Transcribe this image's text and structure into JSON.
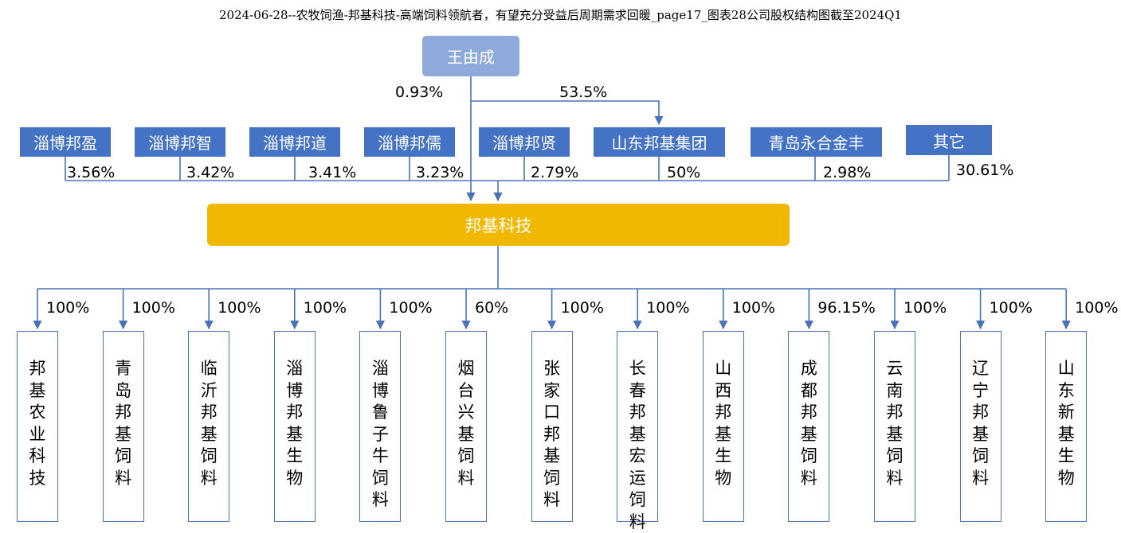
{
  "title": "2024-06-28--农牧饲渔-邦基科技-高端饲料领航者，有望充分受益后周期需求回暖_page17_图表28公司股权结构图截至2024Q1",
  "owner": {
    "name": "王由成",
    "stake_direct": "0.93%",
    "stake_group": "53.5%"
  },
  "company": {
    "name": "邦基科技"
  },
  "shareholders": [
    {
      "name": "淄博邦盈",
      "pct": "3.56%"
    },
    {
      "name": "淄博邦智",
      "pct": "3.42%"
    },
    {
      "name": "淄博邦道",
      "pct": "3.41%"
    },
    {
      "name": "淄博邦儒",
      "pct": "3.23%"
    },
    {
      "name": "淄博邦贤",
      "pct": "2.79%"
    },
    {
      "name": "山东邦基集团",
      "pct": "50%"
    },
    {
      "name": "青岛永合金丰",
      "pct": "2.98%"
    },
    {
      "name": "其它",
      "pct": "30.61%"
    }
  ],
  "subsidiaries": [
    {
      "name": "邦基农业科技",
      "pct": "100%"
    },
    {
      "name": "青岛邦基饲料",
      "pct": "100%"
    },
    {
      "name": "临沂邦基饲料",
      "pct": "100%"
    },
    {
      "name": "淄博邦基生物",
      "pct": "100%"
    },
    {
      "name": "淄博鲁子牛饲料",
      "pct": "100%"
    },
    {
      "name": "烟台兴基饲料",
      "pct": "60%"
    },
    {
      "name": "张家口邦基饲料",
      "pct": "100%"
    },
    {
      "name": "长春邦基宏运饲料",
      "pct": "100%"
    },
    {
      "name": "山西邦基生物",
      "pct": "100%"
    },
    {
      "name": "成都邦基饲料",
      "pct": "96.15%"
    },
    {
      "name": "云南邦基饲料",
      "pct": "100%"
    },
    {
      "name": "辽宁邦基饲料",
      "pct": "100%"
    },
    {
      "name": "山东新基生物",
      "pct": "100%"
    }
  ],
  "colors": {
    "owner": "#8eaadb",
    "shareholder": "#4472c4",
    "company": "#f0b800",
    "line": "#4a72b8"
  }
}
